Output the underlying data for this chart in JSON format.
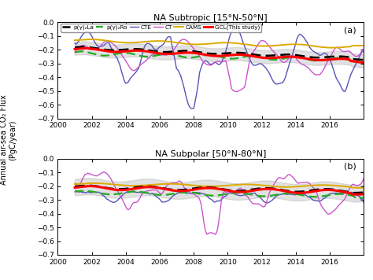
{
  "title_top": "NA Subtropic [15°N-50°N]",
  "title_bot": "NA Subpolar [50°N-80°N]",
  "ylabel": "Annual air-sea CO₂ Flux\n(PgC/year)",
  "ylim": [
    -0.7,
    0.0
  ],
  "yticks": [
    0.0,
    -0.1,
    -0.2,
    -0.3,
    -0.4,
    -0.5,
    -0.6,
    -0.7
  ],
  "xlim": [
    2000,
    2018
  ],
  "xticks": [
    2000,
    2002,
    2004,
    2006,
    2008,
    2010,
    2012,
    2014,
    2016
  ],
  "legend_labels": [
    "p(γ)₂La",
    "p(γ)₂Ro",
    "CTE",
    "CT",
    "CAMS",
    "GCL(This study)"
  ],
  "panel_labels": [
    "(a)",
    "(b)"
  ],
  "shade_color": "#aaaaaa",
  "shade_alpha": 0.35
}
